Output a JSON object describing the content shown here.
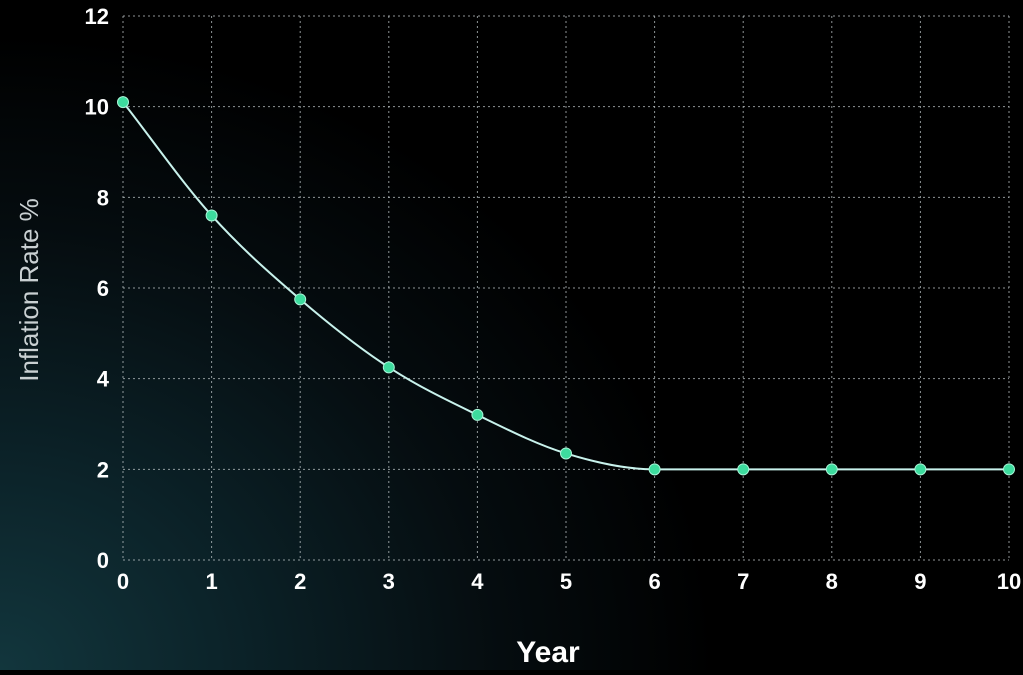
{
  "chart_data": {
    "type": "line",
    "title": "",
    "xlabel": "Year",
    "ylabel": "Inflation Rate %",
    "x": [
      0,
      1,
      2,
      3,
      4,
      5,
      6,
      7,
      8,
      9,
      10
    ],
    "series": [
      {
        "values": [
          10.1,
          7.6,
          5.75,
          4.25,
          3.2,
          2.35,
          2.0,
          2.0,
          2.0,
          2.0,
          2.0
        ]
      }
    ],
    "xlim": [
      0,
      10
    ],
    "ylim": [
      0,
      12
    ],
    "x_ticks": [
      "0",
      "1",
      "2",
      "3",
      "4",
      "5",
      "6",
      "7",
      "8",
      "9",
      "10"
    ],
    "y_ticks": [
      "0",
      "2",
      "4",
      "6",
      "8",
      "10",
      "12"
    ],
    "grid": true,
    "grid_style": "dotted",
    "legend": "none",
    "colors": {
      "line": "#c8f2ec",
      "marker": "#3ddc9e",
      "grid": "#bfc7c9",
      "text": "#ffffff",
      "ylabel_text": "#c9d0d2"
    }
  }
}
